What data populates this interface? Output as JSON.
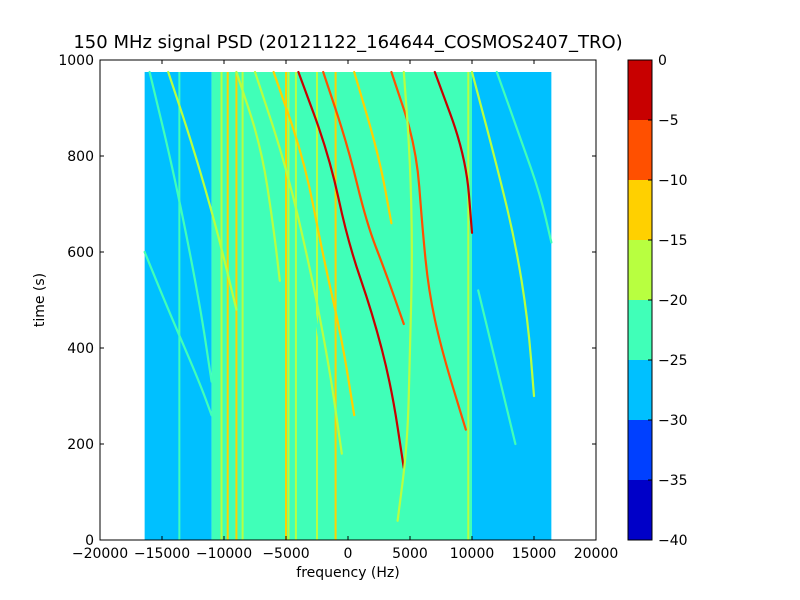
{
  "chart_data": {
    "type": "heatmap",
    "title": "150 MHz signal PSD (20121122_164644_COSMOS2407_TRO)",
    "xlabel": "frequency (Hz)",
    "ylabel": "time (s)",
    "xlim": [
      -20000,
      20000
    ],
    "ylim": [
      0,
      1000
    ],
    "xticks": [
      -20000,
      -15000,
      -10000,
      -5000,
      0,
      5000,
      10000,
      15000,
      20000
    ],
    "xtick_labels": [
      "−20000",
      "−15000",
      "−10000",
      "−5000",
      "0",
      "5000",
      "10000",
      "15000",
      "20000"
    ],
    "yticks": [
      0,
      200,
      400,
      600,
      800,
      1000
    ],
    "ytick_labels": [
      "0",
      "200",
      "400",
      "600",
      "800",
      "1000"
    ],
    "data_extent": {
      "x": [
        -16400,
        16400
      ],
      "y": [
        0,
        975
      ]
    },
    "background_levels": [
      {
        "x_range": [
          -16400,
          -11000
        ],
        "level": -27.5
      },
      {
        "x_range": [
          -11000,
          10000
        ],
        "level": -22.5
      },
      {
        "x_range": [
          10000,
          16400
        ],
        "level": -27.5
      }
    ],
    "vertical_lines": [
      {
        "x": -13600,
        "level": -22.5
      },
      {
        "x": -10200,
        "level": -17.5
      },
      {
        "x": -9700,
        "level": -12.5
      },
      {
        "x": -9000,
        "level": -12.5
      },
      {
        "x": -8500,
        "level": -17.5
      },
      {
        "x": -5000,
        "level": -12.5
      },
      {
        "x": -4800,
        "level": -17.5
      },
      {
        "x": -4200,
        "level": -17.5
      },
      {
        "x": -2500,
        "level": -17.5
      },
      {
        "x": -1000,
        "level": -12.5
      },
      {
        "x": 9700,
        "level": -17.5
      }
    ],
    "traces": [
      {
        "level": -22.5,
        "points": [
          [
            -16000,
            975
          ],
          [
            -14000,
            760
          ],
          [
            -12000,
            500
          ],
          [
            -11000,
            330
          ]
        ]
      },
      {
        "level": -22.5,
        "points": [
          [
            -16400,
            600
          ],
          [
            -14500,
            480
          ],
          [
            -12000,
            330
          ],
          [
            -11000,
            260
          ]
        ]
      },
      {
        "level": -17.5,
        "points": [
          [
            -14500,
            975
          ],
          [
            -12500,
            820
          ],
          [
            -10500,
            640
          ],
          [
            -9000,
            480
          ]
        ]
      },
      {
        "level": -17.5,
        "points": [
          [
            -9000,
            975
          ],
          [
            -7000,
            820
          ],
          [
            -6000,
            650
          ],
          [
            -5500,
            540
          ]
        ]
      },
      {
        "level": -17.5,
        "points": [
          [
            -7500,
            975
          ],
          [
            -5000,
            780
          ],
          [
            -3000,
            560
          ],
          [
            -1500,
            360
          ],
          [
            -500,
            180
          ]
        ]
      },
      {
        "level": -12.5,
        "points": [
          [
            -6000,
            975
          ],
          [
            -3500,
            790
          ],
          [
            -2000,
            590
          ],
          [
            -500,
            420
          ],
          [
            500,
            260
          ]
        ]
      },
      {
        "level": -2.5,
        "points": [
          [
            -4000,
            975
          ],
          [
            -1500,
            800
          ],
          [
            0,
            620
          ],
          [
            2000,
            470
          ],
          [
            3500,
            320
          ],
          [
            4500,
            150
          ]
        ]
      },
      {
        "level": -7.5,
        "points": [
          [
            -2000,
            975
          ],
          [
            0,
            820
          ],
          [
            1500,
            660
          ],
          [
            3000,
            560
          ],
          [
            4500,
            450
          ]
        ]
      },
      {
        "level": -12.5,
        "points": [
          [
            500,
            975
          ],
          [
            2500,
            800
          ],
          [
            3500,
            660
          ]
        ]
      },
      {
        "level": -7.5,
        "points": [
          [
            3500,
            975
          ],
          [
            5500,
            820
          ],
          [
            6000,
            650
          ],
          [
            6500,
            520
          ],
          [
            7500,
            400
          ],
          [
            9500,
            230
          ]
        ]
      },
      {
        "level": -2.5,
        "points": [
          [
            7000,
            975
          ],
          [
            9500,
            800
          ],
          [
            10000,
            640
          ]
        ]
      },
      {
        "level": -17.5,
        "points": [
          [
            4500,
            975
          ],
          [
            5000,
            800
          ],
          [
            5200,
            600
          ],
          [
            5000,
            400
          ],
          [
            4800,
            200
          ],
          [
            4000,
            40
          ]
        ]
      },
      {
        "level": -17.5,
        "points": [
          [
            10000,
            975
          ],
          [
            12000,
            780
          ],
          [
            13500,
            620
          ],
          [
            14500,
            460
          ],
          [
            15000,
            300
          ]
        ]
      },
      {
        "level": -22.5,
        "points": [
          [
            12000,
            975
          ],
          [
            14000,
            830
          ],
          [
            15500,
            720
          ],
          [
            16400,
            620
          ]
        ]
      },
      {
        "level": -22.5,
        "points": [
          [
            10500,
            520
          ],
          [
            12000,
            360
          ],
          [
            13500,
            200
          ]
        ]
      },
      {
        "level": -22.5,
        "points": [
          [
            -3000,
            520
          ],
          [
            -1500,
            300
          ]
        ]
      }
    ],
    "colorbar": {
      "range": [
        -40,
        0
      ],
      "boundaries": [
        -40,
        -35,
        -30,
        -25,
        -20,
        -15,
        -10,
        -5,
        0
      ],
      "tick_labels": [
        "−40",
        "−35",
        "−30",
        "−25",
        "−20",
        "−15",
        "−10",
        "−5",
        "0"
      ],
      "colors": [
        "#0000c8",
        "#0040ff",
        "#00c0ff",
        "#40ffb8",
        "#b8ff40",
        "#ffd000",
        "#ff5000",
        "#c80000"
      ]
    }
  }
}
